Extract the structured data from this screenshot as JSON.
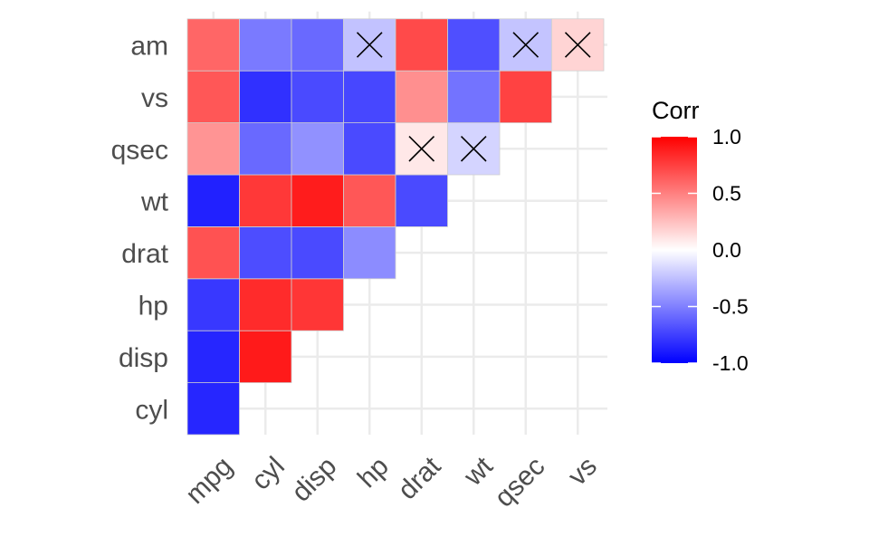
{
  "chart_data": {
    "type": "heatmap",
    "variables": [
      "mpg",
      "cyl",
      "disp",
      "hp",
      "drat",
      "wt",
      "qsec",
      "vs",
      "am"
    ],
    "x_categories": [
      "mpg",
      "cyl",
      "disp",
      "hp",
      "drat",
      "wt",
      "qsec",
      "vs"
    ],
    "y_categories": [
      "cyl",
      "disp",
      "hp",
      "drat",
      "wt",
      "qsec",
      "vs",
      "am"
    ],
    "cells": [
      {
        "x": "mpg",
        "y": "cyl",
        "value": -0.85,
        "insignificant": false
      },
      {
        "x": "mpg",
        "y": "disp",
        "value": -0.85,
        "insignificant": false
      },
      {
        "x": "cyl",
        "y": "disp",
        "value": 0.9,
        "insignificant": false
      },
      {
        "x": "mpg",
        "y": "hp",
        "value": -0.78,
        "insignificant": false
      },
      {
        "x": "cyl",
        "y": "hp",
        "value": 0.83,
        "insignificant": false
      },
      {
        "x": "disp",
        "y": "hp",
        "value": 0.79,
        "insignificant": false
      },
      {
        "x": "mpg",
        "y": "drat",
        "value": 0.68,
        "insignificant": false
      },
      {
        "x": "cyl",
        "y": "drat",
        "value": -0.7,
        "insignificant": false
      },
      {
        "x": "disp",
        "y": "drat",
        "value": -0.71,
        "insignificant": false
      },
      {
        "x": "hp",
        "y": "drat",
        "value": -0.45,
        "insignificant": false
      },
      {
        "x": "mpg",
        "y": "wt",
        "value": -0.87,
        "insignificant": false
      },
      {
        "x": "cyl",
        "y": "wt",
        "value": 0.78,
        "insignificant": false
      },
      {
        "x": "disp",
        "y": "wt",
        "value": 0.89,
        "insignificant": false
      },
      {
        "x": "hp",
        "y": "wt",
        "value": 0.66,
        "insignificant": false
      },
      {
        "x": "drat",
        "y": "wt",
        "value": -0.71,
        "insignificant": false
      },
      {
        "x": "mpg",
        "y": "qsec",
        "value": 0.42,
        "insignificant": false
      },
      {
        "x": "cyl",
        "y": "qsec",
        "value": -0.59,
        "insignificant": false
      },
      {
        "x": "disp",
        "y": "qsec",
        "value": -0.43,
        "insignificant": false
      },
      {
        "x": "hp",
        "y": "qsec",
        "value": -0.71,
        "insignificant": false
      },
      {
        "x": "drat",
        "y": "qsec",
        "value": 0.09,
        "insignificant": true
      },
      {
        "x": "wt",
        "y": "qsec",
        "value": -0.17,
        "insignificant": true
      },
      {
        "x": "mpg",
        "y": "vs",
        "value": 0.66,
        "insignificant": false
      },
      {
        "x": "cyl",
        "y": "vs",
        "value": -0.81,
        "insignificant": false
      },
      {
        "x": "disp",
        "y": "vs",
        "value": -0.71,
        "insignificant": false
      },
      {
        "x": "hp",
        "y": "vs",
        "value": -0.72,
        "insignificant": false
      },
      {
        "x": "drat",
        "y": "vs",
        "value": 0.44,
        "insignificant": false
      },
      {
        "x": "wt",
        "y": "vs",
        "value": -0.55,
        "insignificant": false
      },
      {
        "x": "qsec",
        "y": "vs",
        "value": 0.74,
        "insignificant": false
      },
      {
        "x": "mpg",
        "y": "am",
        "value": 0.6,
        "insignificant": false
      },
      {
        "x": "cyl",
        "y": "am",
        "value": -0.52,
        "insignificant": false
      },
      {
        "x": "disp",
        "y": "am",
        "value": -0.59,
        "insignificant": false
      },
      {
        "x": "hp",
        "y": "am",
        "value": -0.24,
        "insignificant": true
      },
      {
        "x": "drat",
        "y": "am",
        "value": 0.71,
        "insignificant": false
      },
      {
        "x": "wt",
        "y": "am",
        "value": -0.69,
        "insignificant": false
      },
      {
        "x": "qsec",
        "y": "am",
        "value": -0.23,
        "insignificant": true
      },
      {
        "x": "vs",
        "y": "am",
        "value": 0.17,
        "insignificant": true
      }
    ],
    "legend": {
      "title": "Corr",
      "ticks": [
        1.0,
        0.5,
        0.0,
        -0.5,
        -1.0
      ],
      "tick_labels": [
        "1.0",
        "0.5",
        "0.0",
        "-0.5",
        "-1.0"
      ],
      "position": "right"
    },
    "color_scale": {
      "low": "#0000ff",
      "mid": "#ffffff",
      "high": "#ff0000"
    },
    "cell_border_color": "#d0d0d0",
    "grid_color": "#ebebeb",
    "insignificant_marker": "X",
    "value_range": [
      -1,
      1
    ],
    "grid": true,
    "title": "",
    "xlabel": "",
    "ylabel": ""
  }
}
